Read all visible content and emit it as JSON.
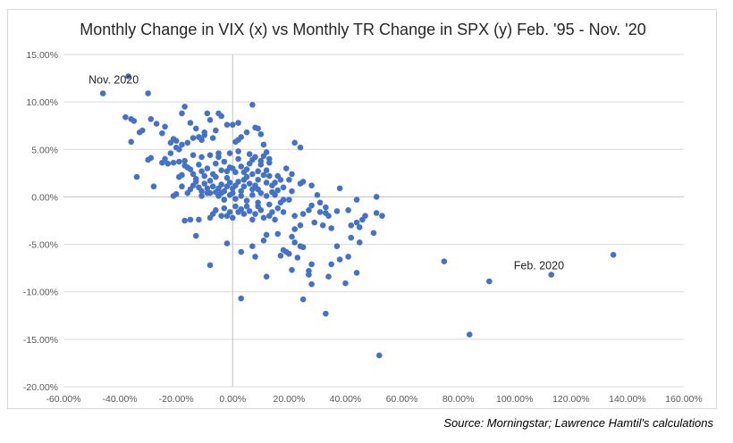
{
  "chart_data": {
    "type": "scatter",
    "title": "Monthly Change in VIX (x) vs Monthly TR Change in SPX (y) Feb. '95 - Nov. '20",
    "xlabel": "",
    "ylabel": "",
    "xlim": [
      -0.6,
      1.6
    ],
    "ylim": [
      -0.2,
      0.15
    ],
    "x_ticks": [
      -0.6,
      -0.4,
      -0.2,
      0,
      0.2,
      0.4,
      0.6,
      0.8,
      1.0,
      1.2,
      1.4,
      1.6
    ],
    "x_tick_labels": [
      "-60.00%",
      "-40.00%",
      "-20.00%",
      "0.00%",
      "20.00%",
      "40.00%",
      "60.00%",
      "80.00%",
      "100.00%",
      "120.00%",
      "140.00%",
      "160.00%"
    ],
    "y_ticks": [
      -0.2,
      -0.15,
      -0.1,
      -0.05,
      0,
      0.05,
      0.1,
      0.15
    ],
    "y_tick_labels": [
      "-20.00%",
      "-15.00%",
      "-10.00%",
      "-5.00%",
      "0.00%",
      "5.00%",
      "10.00%",
      "15.00%"
    ],
    "grid": "horizontal",
    "legend": "none",
    "marker_color": "#4472c4",
    "annotations": [
      {
        "text": "Nov. 2020",
        "x": -0.46,
        "y": 0.109
      },
      {
        "text": "Feb. 2020",
        "x": 1.13,
        "y": -0.082
      }
    ],
    "points": [
      [
        -0.46,
        0.109
      ],
      [
        -0.37,
        0.127
      ],
      [
        -0.38,
        0.084
      ],
      [
        -0.35,
        0.08
      ],
      [
        -0.36,
        0.082
      ],
      [
        -0.3,
        0.109
      ],
      [
        -0.32,
        0.07
      ],
      [
        -0.29,
        0.082
      ],
      [
        -0.33,
        0.068
      ],
      [
        -0.36,
        0.058
      ],
      [
        -0.27,
        0.077
      ],
      [
        -0.24,
        0.074
      ],
      [
        -0.25,
        0.067
      ],
      [
        -0.29,
        0.041
      ],
      [
        -0.3,
        0.039
      ],
      [
        -0.34,
        0.021
      ],
      [
        -0.28,
        0.011
      ],
      [
        -0.22,
        0.057
      ],
      [
        -0.21,
        0.061
      ],
      [
        -0.2,
        0.059
      ],
      [
        -0.19,
        0.05
      ],
      [
        -0.18,
        0.055
      ],
      [
        -0.17,
        0.095
      ],
      [
        -0.18,
        0.088
      ],
      [
        -0.15,
        0.078
      ],
      [
        -0.13,
        0.072
      ],
      [
        -0.12,
        0.063
      ],
      [
        -0.11,
        0.06
      ],
      [
        -0.1,
        0.065
      ],
      [
        -0.09,
        0.088
      ],
      [
        -0.08,
        0.081
      ],
      [
        -0.05,
        0.088
      ],
      [
        -0.04,
        0.085
      ],
      [
        -0.02,
        0.076
      ],
      [
        0.0,
        0.076
      ],
      [
        0.02,
        0.078
      ],
      [
        0.07,
        0.097
      ],
      [
        0.08,
        0.073
      ],
      [
        0.09,
        0.072
      ],
      [
        0.1,
        0.066
      ],
      [
        0.03,
        0.063
      ],
      [
        0.01,
        0.058
      ],
      [
        0.02,
        0.06
      ],
      [
        0.05,
        0.068
      ],
      [
        -0.06,
        0.07
      ],
      [
        -0.07,
        0.062
      ],
      [
        -0.1,
        0.068
      ],
      [
        -0.14,
        0.062
      ],
      [
        -0.16,
        0.057
      ],
      [
        -0.2,
        0.052
      ],
      [
        -0.22,
        0.046
      ],
      [
        -0.24,
        0.04
      ],
      [
        -0.25,
        0.036
      ],
      [
        -0.23,
        0.035
      ],
      [
        -0.21,
        0.036
      ],
      [
        -0.19,
        0.037
      ],
      [
        -0.17,
        0.038
      ],
      [
        -0.16,
        0.031
      ],
      [
        -0.18,
        0.023
      ],
      [
        -0.19,
        0.021
      ],
      [
        -0.15,
        0.029
      ],
      [
        -0.14,
        0.024
      ],
      [
        -0.13,
        0.019
      ],
      [
        -0.12,
        0.034
      ],
      [
        -0.11,
        0.027
      ],
      [
        -0.1,
        0.022
      ],
      [
        -0.09,
        0.03
      ],
      [
        -0.08,
        0.017
      ],
      [
        -0.07,
        0.024
      ],
      [
        -0.06,
        0.035
      ],
      [
        -0.05,
        0.042
      ],
      [
        -0.04,
        0.028
      ],
      [
        -0.03,
        0.037
      ],
      [
        -0.02,
        0.027
      ],
      [
        -0.01,
        0.031
      ],
      [
        0.0,
        0.03
      ],
      [
        0.01,
        0.026
      ],
      [
        0.02,
        0.04
      ],
      [
        0.03,
        0.032
      ],
      [
        0.04,
        0.018
      ],
      [
        0.05,
        0.029
      ],
      [
        0.06,
        0.045
      ],
      [
        0.07,
        0.039
      ],
      [
        0.08,
        0.042
      ],
      [
        0.09,
        0.027
      ],
      [
        0.1,
        0.034
      ],
      [
        0.11,
        0.055
      ],
      [
        0.12,
        0.047
      ],
      [
        0.13,
        0.036
      ],
      [
        0.12,
        0.028
      ],
      [
        0.09,
        0.018
      ],
      [
        0.08,
        0.012
      ],
      [
        0.07,
        0.008
      ],
      [
        0.06,
        0.014
      ],
      [
        0.05,
        0.021
      ],
      [
        0.04,
        0.011
      ],
      [
        0.03,
        0.006
      ],
      [
        0.02,
        0.016
      ],
      [
        0.01,
        0.012
      ],
      [
        0.0,
        0.009
      ],
      [
        -0.01,
        0.015
      ],
      [
        -0.02,
        0.011
      ],
      [
        -0.03,
        0.006
      ],
      [
        -0.04,
        0.013
      ],
      [
        -0.05,
        0.009
      ],
      [
        -0.06,
        0.005
      ],
      [
        -0.07,
        0.011
      ],
      [
        -0.08,
        0.004
      ],
      [
        -0.09,
        0.009
      ],
      [
        -0.1,
        0.014
      ],
      [
        -0.11,
        0.006
      ],
      [
        -0.12,
        0.01
      ],
      [
        -0.13,
        0.016
      ],
      [
        -0.14,
        0.012
      ],
      [
        -0.15,
        0.008
      ],
      [
        -0.16,
        0.004
      ],
      [
        -0.18,
        0.011
      ],
      [
        -0.2,
        0.003
      ],
      [
        -0.21,
        0.001
      ],
      [
        -0.05,
        0.001
      ],
      [
        -0.03,
        -0.003
      ],
      [
        -0.01,
        0.002
      ],
      [
        0.01,
        -0.002
      ],
      [
        0.03,
        0.001
      ],
      [
        0.05,
        -0.004
      ],
      [
        0.07,
        0.002
      ],
      [
        0.09,
        -0.006
      ],
      [
        0.1,
        0.004
      ],
      [
        0.12,
        0.001
      ],
      [
        0.13,
        -0.008
      ],
      [
        0.15,
        0.002
      ],
      [
        0.14,
        0.012
      ],
      [
        0.17,
        0.018
      ],
      [
        0.19,
        0.03
      ],
      [
        0.21,
        0.024
      ],
      [
        0.2,
        0.018
      ],
      [
        0.22,
        0.057
      ],
      [
        0.24,
        0.052
      ],
      [
        0.16,
        0.022
      ],
      [
        0.18,
        0.01
      ],
      [
        0.21,
        0.006
      ],
      [
        0.24,
        0.014
      ],
      [
        0.25,
        0.016
      ],
      [
        0.28,
        0.012
      ],
      [
        0.3,
        0.002
      ],
      [
        0.2,
        -0.003
      ],
      [
        0.17,
        -0.006
      ],
      [
        0.16,
        -0.012
      ],
      [
        0.14,
        -0.016
      ],
      [
        0.13,
        -0.02
      ],
      [
        0.11,
        -0.022
      ],
      [
        0.1,
        -0.014
      ],
      [
        0.09,
        -0.01
      ],
      [
        0.08,
        -0.018
      ],
      [
        0.07,
        -0.024
      ],
      [
        0.06,
        -0.015
      ],
      [
        0.05,
        -0.01
      ],
      [
        0.04,
        -0.018
      ],
      [
        0.03,
        -0.013
      ],
      [
        0.02,
        -0.016
      ],
      [
        0.01,
        -0.01
      ],
      [
        0.0,
        -0.022
      ],
      [
        -0.01,
        -0.016
      ],
      [
        -0.02,
        -0.02
      ],
      [
        -0.03,
        -0.012
      ],
      [
        -0.04,
        -0.02
      ],
      [
        -0.06,
        -0.014
      ],
      [
        -0.07,
        -0.018
      ],
      [
        -0.08,
        -0.022
      ],
      [
        -0.12,
        -0.024
      ],
      [
        -0.15,
        -0.024
      ],
      [
        -0.17,
        -0.025
      ],
      [
        -0.13,
        -0.041
      ],
      [
        -0.08,
        -0.072
      ],
      [
        -0.02,
        -0.049
      ],
      [
        0.03,
        -0.058
      ],
      [
        0.07,
        -0.052
      ],
      [
        0.08,
        -0.063
      ],
      [
        0.11,
        -0.046
      ],
      [
        0.12,
        -0.04
      ],
      [
        0.16,
        -0.039
      ],
      [
        0.18,
        -0.056
      ],
      [
        0.19,
        -0.058
      ],
      [
        0.17,
        -0.062
      ],
      [
        0.21,
        -0.042
      ],
      [
        0.22,
        -0.048
      ],
      [
        0.24,
        -0.052
      ],
      [
        0.25,
        -0.053
      ],
      [
        0.23,
        -0.064
      ],
      [
        0.27,
        -0.082
      ],
      [
        0.27,
        -0.078
      ],
      [
        0.28,
        -0.071
      ],
      [
        0.28,
        -0.092
      ],
      [
        0.25,
        -0.108
      ],
      [
        0.21,
        -0.077
      ],
      [
        0.2,
        -0.06
      ],
      [
        0.12,
        -0.084
      ],
      [
        0.03,
        -0.107
      ],
      [
        0.33,
        -0.123
      ],
      [
        0.34,
        -0.084
      ],
      [
        0.35,
        -0.071
      ],
      [
        0.37,
        -0.052
      ],
      [
        0.38,
        -0.066
      ],
      [
        0.41,
        -0.063
      ],
      [
        0.4,
        -0.091
      ],
      [
        0.44,
        -0.08
      ],
      [
        0.5,
        -0.038
      ],
      [
        0.45,
        -0.048
      ],
      [
        0.44,
        -0.027
      ],
      [
        0.42,
        -0.03
      ],
      [
        0.42,
        -0.043
      ],
      [
        0.41,
        -0.014
      ],
      [
        0.46,
        -0.024
      ],
      [
        0.47,
        -0.02
      ],
      [
        0.51,
        -0.017
      ],
      [
        0.53,
        -0.02
      ],
      [
        0.45,
        -0.032
      ],
      [
        0.35,
        -0.033
      ],
      [
        0.32,
        -0.03
      ],
      [
        0.29,
        -0.027
      ],
      [
        0.34,
        -0.02
      ],
      [
        0.37,
        -0.015
      ],
      [
        0.33,
        -0.017
      ],
      [
        0.31,
        -0.016
      ],
      [
        0.27,
        -0.014
      ],
      [
        0.25,
        -0.018
      ],
      [
        0.22,
        -0.02
      ],
      [
        0.18,
        -0.016
      ],
      [
        0.15,
        -0.024
      ],
      [
        0.28,
        -0.009
      ],
      [
        0.31,
        -0.006
      ],
      [
        0.33,
        -0.011
      ],
      [
        0.38,
        0.009
      ],
      [
        0.44,
        -0.003
      ],
      [
        0.51,
        0.0
      ],
      [
        0.24,
        -0.03
      ],
      [
        0.22,
        -0.034
      ],
      [
        0.52,
        -0.167
      ],
      [
        0.75,
        -0.068
      ],
      [
        0.84,
        -0.145
      ],
      [
        0.91,
        -0.089
      ],
      [
        1.13,
        -0.082
      ],
      [
        1.35,
        -0.061
      ],
      [
        -0.05,
        0.046
      ],
      [
        -0.08,
        0.044
      ],
      [
        -0.11,
        0.042
      ],
      [
        -0.14,
        0.044
      ],
      [
        -0.01,
        0.046
      ],
      [
        0.02,
        0.048
      ],
      [
        0.11,
        0.043
      ],
      [
        0.13,
        0.04
      ],
      [
        0.1,
        0.038
      ],
      [
        -0.06,
        0.021
      ],
      [
        -0.17,
        0.033
      ],
      [
        0.06,
        0.035
      ],
      [
        0.07,
        0.024
      ],
      [
        0.11,
        0.023
      ],
      [
        0.13,
        0.022
      ],
      [
        0.15,
        0.015
      ],
      [
        0.16,
        0.007
      ],
      [
        0.12,
        0.015
      ],
      [
        0.04,
        0.026
      ],
      [
        -0.02,
        0.02
      ],
      [
        0.09,
        0.008
      ],
      [
        0.18,
        -0.003
      ],
      [
        0.14,
        0.005
      ],
      [
        -0.09,
        0.004
      ],
      [
        -0.11,
        0.001
      ],
      [
        -0.04,
        0.004
      ],
      [
        0.0,
        0.004
      ]
    ]
  },
  "source_note": "Source:  Morningstar; Lawrence Hamtil's calculations"
}
